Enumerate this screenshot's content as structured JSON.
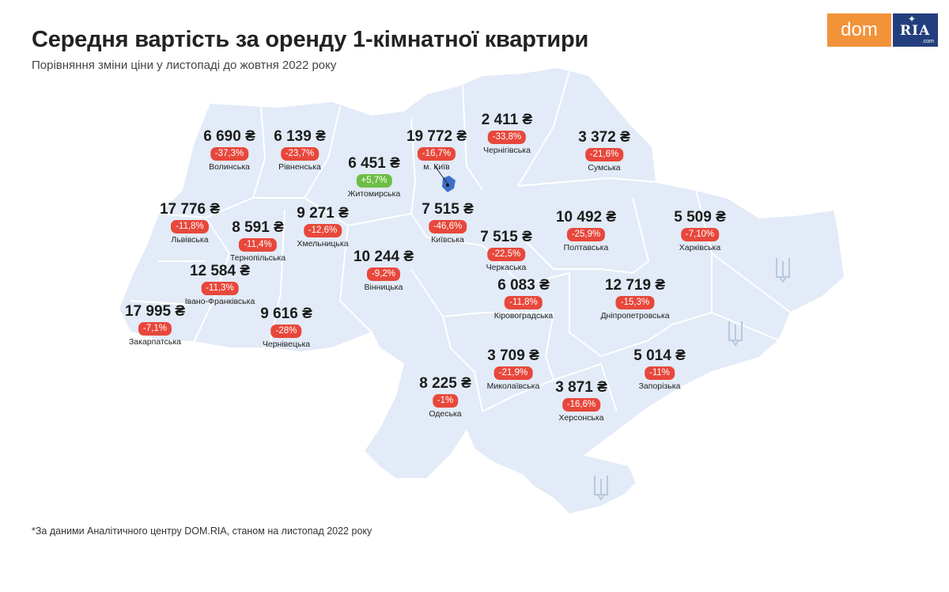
{
  "header": {
    "title": "Середня вартість за оренду 1-кімнатної квартири",
    "subtitle": "Порівняння зміни ціни у листопаді до жовтня 2022 року"
  },
  "logo": {
    "left": "dom",
    "right": "RIA",
    "right_small": ".com"
  },
  "footnote": "*За даними Аналітичного центру DOM.RIA, станом на листопад 2022 року",
  "colors": {
    "map_fill": "#e2ebf7",
    "badge_down": "#e8473b",
    "badge_up": "#6cbd45",
    "logo_orange": "#f2933a",
    "logo_blue": "#223e7d"
  },
  "icons": {
    "occupied_marker": "trident-icon",
    "kyiv_marker": "city-pin-icon"
  },
  "regions": [
    {
      "name": "Волинська",
      "price": "6 690 ₴",
      "change": "-37,3%",
      "trend": "down"
    },
    {
      "name": "Рівненська",
      "price": "6 139 ₴",
      "change": "-23,7%",
      "trend": "down"
    },
    {
      "name": "Житомирська",
      "price": "6 451 ₴",
      "change": "+5,7%",
      "trend": "up"
    },
    {
      "name": "м. Київ",
      "price": "19 772 ₴",
      "change": "-16,7%",
      "trend": "down"
    },
    {
      "name": "Чернігівська",
      "price": "2 411 ₴",
      "change": "-33,8%",
      "trend": "down"
    },
    {
      "name": "Сумська",
      "price": "3 372 ₴",
      "change": "-21,6%",
      "trend": "down"
    },
    {
      "name": "Львівська",
      "price": "17 776 ₴",
      "change": "-11,8%",
      "trend": "down"
    },
    {
      "name": "Тернопільська",
      "price": "8 591 ₴",
      "change": "-11,4%",
      "trend": "down"
    },
    {
      "name": "Хмельницька",
      "price": "9 271 ₴",
      "change": "-12,6%",
      "trend": "down"
    },
    {
      "name": "Київська",
      "price": "7 515 ₴",
      "change": "-46,6%",
      "trend": "down"
    },
    {
      "name": "Полтавська",
      "price": "10 492 ₴",
      "change": "-25,9%",
      "trend": "down"
    },
    {
      "name": "Харківська",
      "price": "5 509 ₴",
      "change": "-7,10%",
      "trend": "down"
    },
    {
      "name": "Черкаська",
      "price": "7 515 ₴",
      "change": "-22,5%",
      "trend": "down"
    },
    {
      "name": "Вінницька",
      "price": "10 244 ₴",
      "change": "-9,2%",
      "trend": "down"
    },
    {
      "name": "Івано-Франківська",
      "price": "12 584 ₴",
      "change": "-11,3%",
      "trend": "down"
    },
    {
      "name": "Закарпатська",
      "price": "17 995 ₴",
      "change": "-7,1%",
      "trend": "down"
    },
    {
      "name": "Чернівецька",
      "price": "9 616 ₴",
      "change": "-28%",
      "trend": "down"
    },
    {
      "name": "Кіровоградська",
      "price": "6 083 ₴",
      "change": "-11,8%",
      "trend": "down"
    },
    {
      "name": "Дніпропетровська",
      "price": "12 719 ₴",
      "change": "-15,3%",
      "trend": "down"
    },
    {
      "name": "Миколаївська",
      "price": "3 709 ₴",
      "change": "-21,9%",
      "trend": "down"
    },
    {
      "name": "Одеська",
      "price": "8 225 ₴",
      "change": "-1%",
      "trend": "down"
    },
    {
      "name": "Запорізька",
      "price": "5 014 ₴",
      "change": "-11%",
      "trend": "down"
    },
    {
      "name": "Херсонська",
      "price": "3 871 ₴",
      "change": "-16,6%",
      "trend": "down"
    }
  ]
}
